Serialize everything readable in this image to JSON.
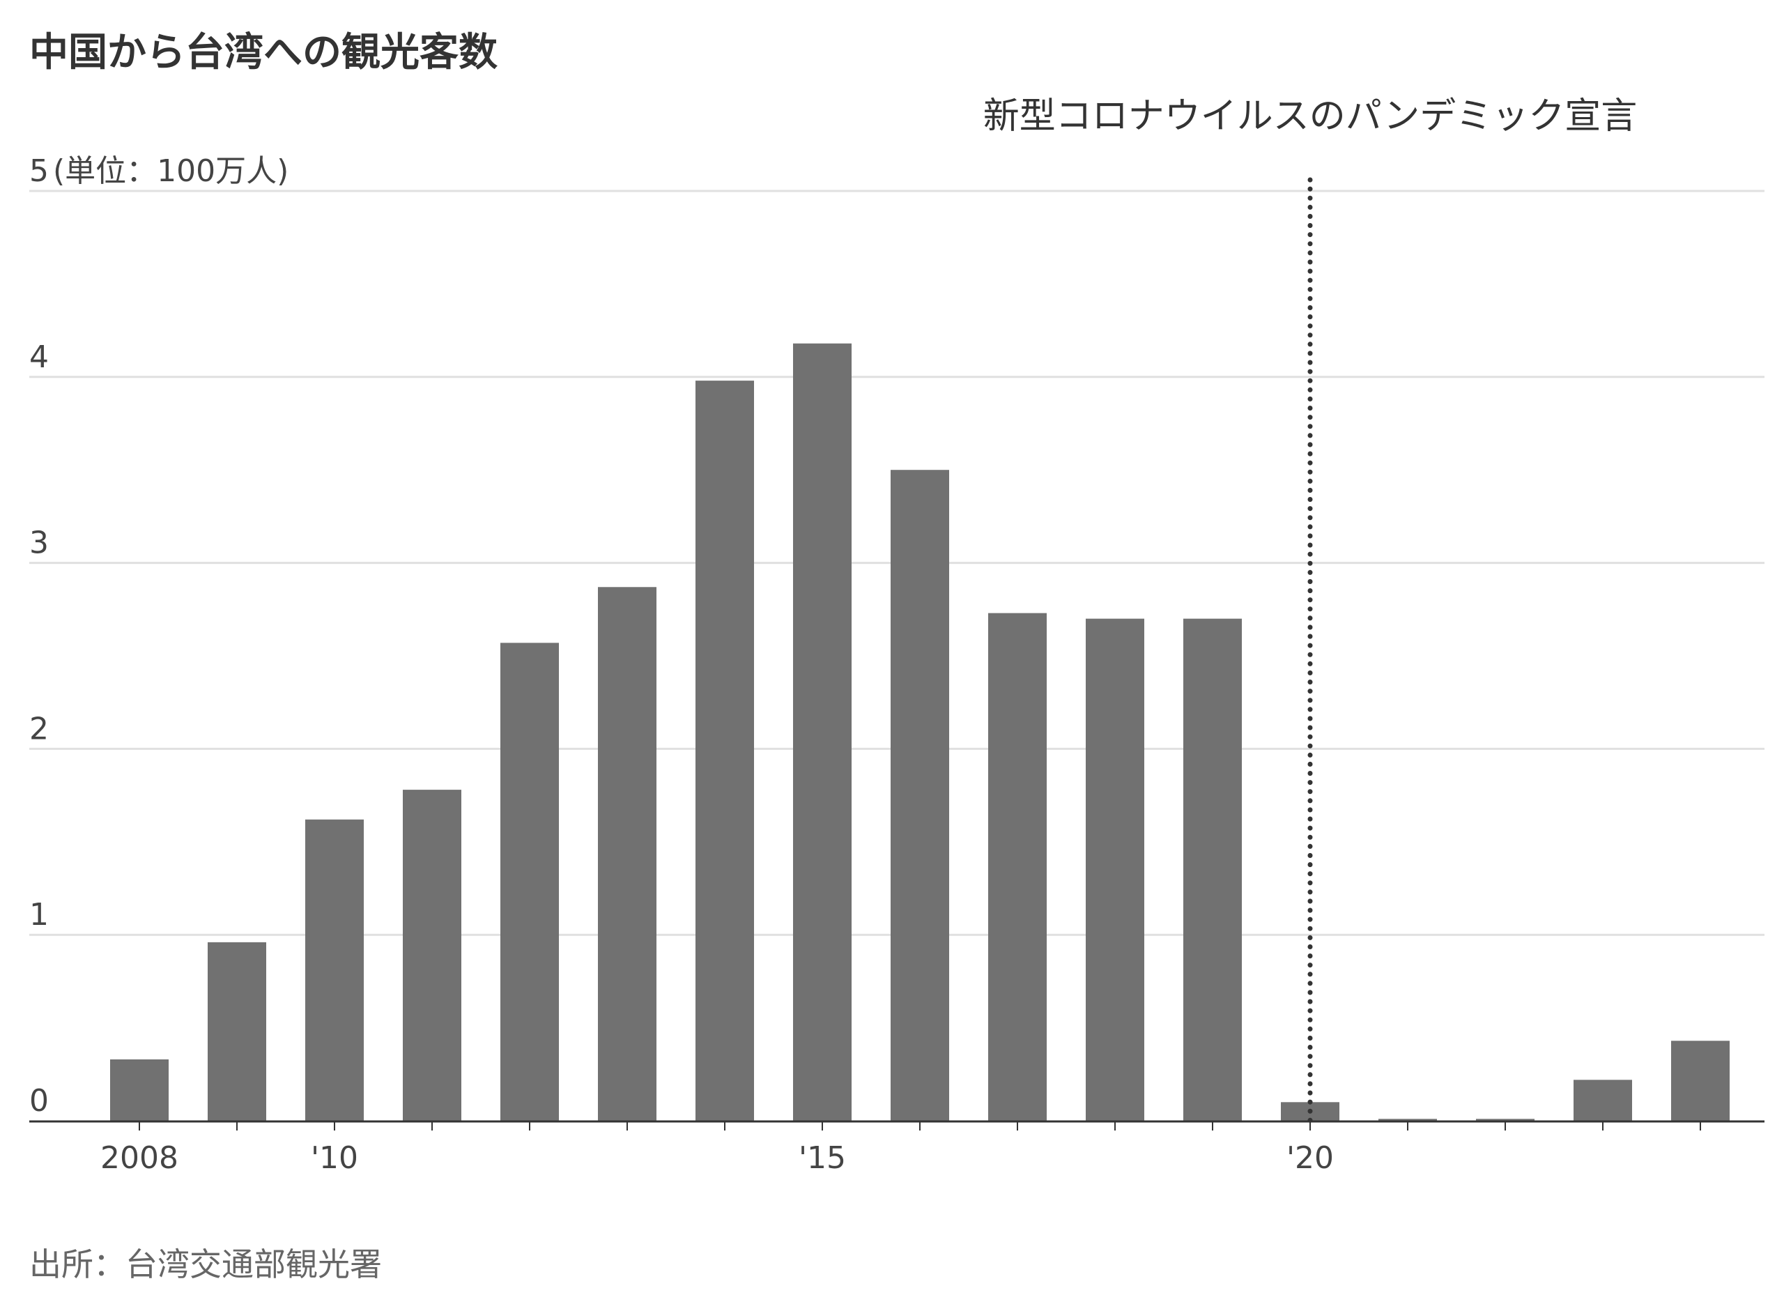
{
  "title": "中国から台湾への観光客数",
  "source": "出所：台湾交通部観光署",
  "chart_data": {
    "type": "bar",
    "title": "中国から台湾への観光客数",
    "unit_label": "(単位：100万人)",
    "categories": [
      "2008",
      "2009",
      "2010",
      "2011",
      "2012",
      "2013",
      "2014",
      "2015",
      "2016",
      "2017",
      "2018",
      "2019",
      "2020",
      "2021",
      "2022",
      "2023",
      "2024"
    ],
    "values": [
      0.33,
      0.96,
      1.62,
      1.78,
      2.57,
      2.87,
      3.98,
      4.18,
      3.5,
      2.73,
      2.7,
      2.7,
      0.1,
      0.01,
      0.01,
      0.22,
      0.43
    ],
    "x_tick_labels": [
      {
        "category": "2008",
        "label": "2008"
      },
      {
        "category": "2010",
        "label": "'10"
      },
      {
        "category": "2015",
        "label": "'15"
      },
      {
        "category": "2020",
        "label": "'20"
      }
    ],
    "y_ticks": [
      0,
      1,
      2,
      3,
      4,
      5
    ],
    "ylim": [
      0,
      5
    ],
    "grid": true,
    "bar_color": "#717171",
    "annotation": {
      "label": "新型コロナウイルスのパンデミック宣言",
      "category": "2020",
      "style": "dotted-vertical-line"
    }
  }
}
